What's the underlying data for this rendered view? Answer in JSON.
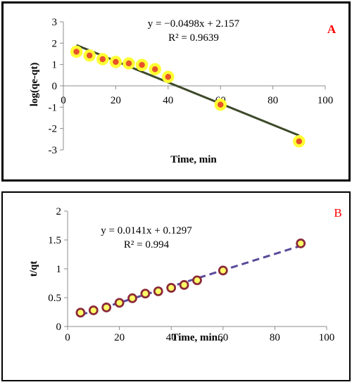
{
  "chart_data": [
    {
      "type": "scatter",
      "panel_label": "A",
      "panel_label_color": "#ff0000",
      "xlabel": "Time, min",
      "ylabel": "log(qe-qt)",
      "xlim": [
        0,
        100
      ],
      "ylim": [
        -3,
        3
      ],
      "xticks": [
        0,
        20,
        40,
        60,
        80,
        100
      ],
      "yticks": [
        -3,
        -2,
        -1,
        0,
        1,
        2,
        3
      ],
      "grid": false,
      "equation": "y = −0.0498x + 2.157",
      "r_squared": "R² = 0.9639",
      "series": [
        {
          "points": [
            {
              "x": 5,
              "y": 1.6
            },
            {
              "x": 10,
              "y": 1.42
            },
            {
              "x": 15,
              "y": 1.25
            },
            {
              "x": 20,
              "y": 1.12
            },
            {
              "x": 25,
              "y": 1.05
            },
            {
              "x": 30,
              "y": 0.98
            },
            {
              "x": 35,
              "y": 0.78
            },
            {
              "x": 40,
              "y": 0.42
            },
            {
              "x": 60,
              "y": -0.88
            },
            {
              "x": 90,
              "y": -2.6
            }
          ],
          "marker_fill": "#e8522a",
          "marker_stroke": "#ffff33",
          "trendline": {
            "slope": -0.0498,
            "intercept": 2.157,
            "x_range": [
              5,
              90
            ],
            "color": "#3d4a2a",
            "style": "solid"
          }
        }
      ]
    },
    {
      "type": "scatter",
      "panel_label": "B",
      "panel_label_color": "#ff0000",
      "xlabel": "Time, min.,",
      "ylabel": "t/qt",
      "xlim": [
        0,
        100
      ],
      "ylim": [
        0,
        2
      ],
      "xticks": [
        0,
        20,
        40,
        60,
        80,
        100
      ],
      "yticks": [
        0,
        0.5,
        1,
        1.5,
        2
      ],
      "grid": false,
      "equation": "y = 0.0141x + 0.1297",
      "r_squared": "R² = 0.994",
      "series": [
        {
          "points": [
            {
              "x": 5,
              "y": 0.24
            },
            {
              "x": 10,
              "y": 0.28
            },
            {
              "x": 15,
              "y": 0.33
            },
            {
              "x": 20,
              "y": 0.41
            },
            {
              "x": 25,
              "y": 0.49
            },
            {
              "x": 30,
              "y": 0.57
            },
            {
              "x": 35,
              "y": 0.61
            },
            {
              "x": 40,
              "y": 0.67
            },
            {
              "x": 45,
              "y": 0.72
            },
            {
              "x": 50,
              "y": 0.8
            },
            {
              "x": 60,
              "y": 0.97
            },
            {
              "x": 90,
              "y": 1.44
            }
          ],
          "marker_fill": "#ffff66",
          "marker_stroke": "#8b2b3a",
          "trendline": {
            "slope": 0.0141,
            "intercept": 0.1297,
            "x_range": [
              5,
              90
            ],
            "color": "#5b4a9a",
            "style": "dashed"
          }
        }
      ]
    }
  ]
}
